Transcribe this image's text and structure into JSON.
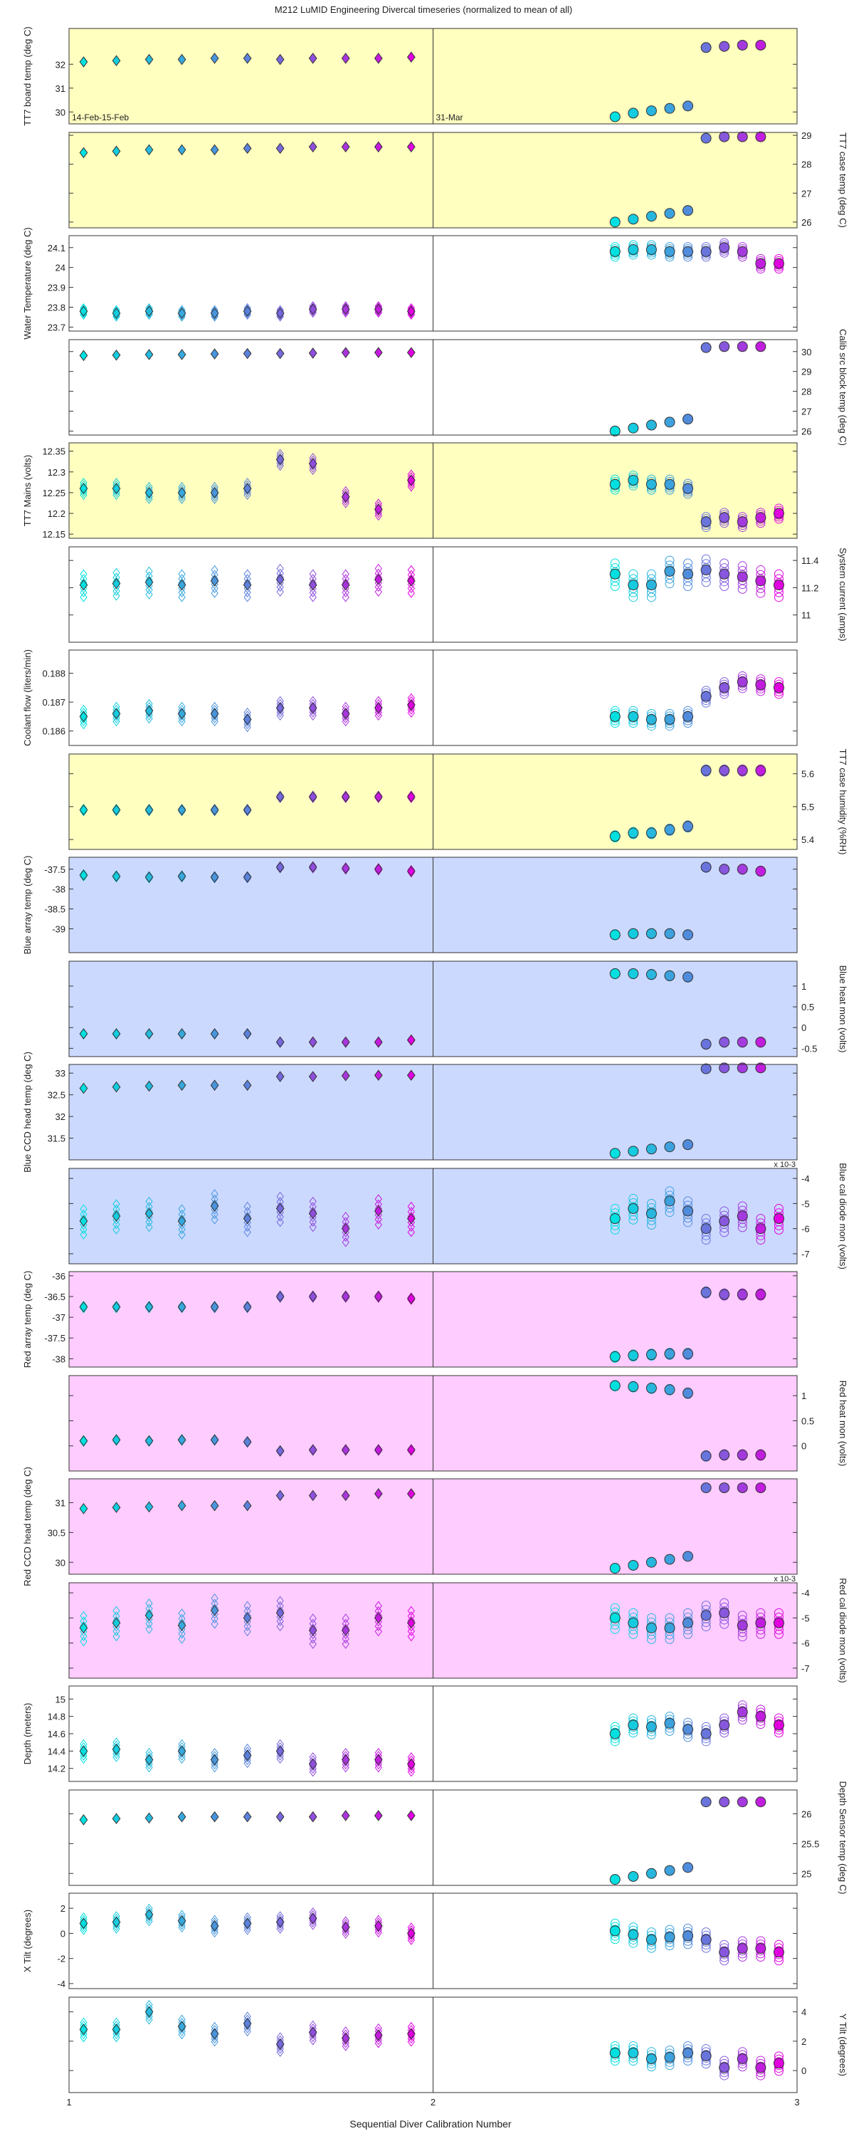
{
  "title": "M212  LuMID Engineering Divercal timeseries (normalized to mean of all)",
  "xlabel": "Sequential Diver Calibration Number",
  "x_ticks": [
    "1",
    "2",
    "3"
  ],
  "colors": {
    "bg_yellow": "#ffffc0",
    "bg_blue": "#ccd9ff",
    "bg_pink": "#ffccff",
    "bg_white": "#ffffff",
    "marker_start": "#00e0e0",
    "marker_end": "#e000e0"
  },
  "chart_data": {
    "type": "scatter",
    "x_range": [
      1,
      3
    ],
    "groups": [
      {
        "name": "14-Feb-15-Feb",
        "x": [
          1.04,
          1.13,
          1.22,
          1.31,
          1.4,
          1.49,
          1.58,
          1.67,
          1.76,
          1.85,
          1.94
        ],
        "marker": "diamond"
      },
      {
        "name": "31-Mar",
        "x": [
          2.5,
          2.55,
          2.6,
          2.65,
          2.7,
          2.75,
          2.8,
          2.85,
          2.9,
          2.95
        ],
        "marker": "circle"
      }
    ],
    "date_labels": [
      "14-Feb-15-Feb",
      "31-Mar"
    ],
    "panels": [
      {
        "label": "TT7 board temp (deg C)",
        "axis": "left",
        "bg": "yellow",
        "ylim": [
          29.5,
          33.5
        ],
        "ticks": [
          "30",
          "31",
          "32"
        ],
        "tick_values": [
          30,
          31,
          32
        ],
        "dates": true,
        "g1": [
          32.1,
          32.15,
          32.2,
          32.2,
          32.25,
          32.25,
          32.2,
          32.25,
          32.25,
          32.25,
          32.3
        ],
        "g1_spread": 0,
        "g2": [
          29.8,
          29.95,
          30.05,
          30.15,
          30.25,
          32.7,
          32.75,
          32.8,
          32.8,
          null
        ],
        "g2_spread": 0
      },
      {
        "label": "TT7 case temp (deg C)",
        "axis": "right",
        "bg": "yellow",
        "ylim": [
          25.8,
          29.1
        ],
        "ticks": [
          "26",
          "27",
          "28",
          "29"
        ],
        "tick_values": [
          26,
          27,
          28,
          29
        ],
        "g1": [
          28.4,
          28.45,
          28.5,
          28.5,
          28.5,
          28.55,
          28.55,
          28.6,
          28.6,
          28.6,
          28.6
        ],
        "g1_spread": 0,
        "g2": [
          26.0,
          26.1,
          26.2,
          26.3,
          26.4,
          28.9,
          28.95,
          28.95,
          28.95,
          null
        ],
        "g2_spread": 0
      },
      {
        "label": "Water Temperature (deg C)",
        "axis": "left",
        "bg": "white",
        "ylim": [
          23.68,
          24.16
        ],
        "ticks": [
          "23.7",
          "23.8",
          "23.9",
          "24",
          "24.1"
        ],
        "tick_values": [
          23.7,
          23.8,
          23.9,
          24.0,
          24.1
        ],
        "g1": [
          23.78,
          23.77,
          23.78,
          23.77,
          23.77,
          23.78,
          23.77,
          23.79,
          23.79,
          23.79,
          23.78
        ],
        "g1_spread": 0.04,
        "g2": [
          24.08,
          24.09,
          24.09,
          24.08,
          24.08,
          24.08,
          24.1,
          24.08,
          24.02,
          24.02
        ],
        "g2_spread": 0.06
      },
      {
        "label": "Calib src block temp (deg C)",
        "axis": "right",
        "bg": "white",
        "ylim": [
          25.8,
          30.6
        ],
        "ticks": [
          "26",
          "27",
          "28",
          "29",
          "30"
        ],
        "tick_values": [
          26,
          27,
          28,
          29,
          30
        ],
        "g1": [
          29.8,
          29.82,
          29.85,
          29.85,
          29.88,
          29.9,
          29.9,
          29.92,
          29.95,
          29.95,
          29.95
        ],
        "g1_spread": 0,
        "g2": [
          26.0,
          26.15,
          26.3,
          26.45,
          26.6,
          30.2,
          30.25,
          30.25,
          30.25,
          null
        ],
        "g2_spread": 0
      },
      {
        "label": "TT7 Mains (volts)",
        "axis": "left",
        "bg": "yellow",
        "ylim": [
          12.14,
          12.37
        ],
        "ticks": [
          "12.15",
          "12.2",
          "12.25",
          "12.3",
          "12.35"
        ],
        "tick_values": [
          12.15,
          12.2,
          12.25,
          12.3,
          12.35
        ],
        "g1": [
          12.26,
          12.26,
          12.25,
          12.25,
          12.25,
          12.26,
          12.33,
          12.32,
          12.24,
          12.21,
          12.28
        ],
        "g1_spread": 0.035,
        "g2": [
          12.27,
          12.28,
          12.27,
          12.27,
          12.26,
          12.18,
          12.19,
          12.18,
          12.19,
          12.2
        ],
        "g2_spread": 0.03
      },
      {
        "label": "System current (amps)",
        "axis": "right",
        "bg": "white",
        "ylim": [
          10.8,
          11.5
        ],
        "ticks": [
          "11",
          "11.2",
          "11.4"
        ],
        "tick_values": [
          11.0,
          11.2,
          11.4
        ],
        "g1": [
          11.22,
          11.23,
          11.24,
          11.22,
          11.25,
          11.22,
          11.26,
          11.22,
          11.22,
          11.26,
          11.25
        ],
        "g1_spread": 0.2,
        "g2": [
          11.3,
          11.22,
          11.22,
          11.32,
          11.3,
          11.33,
          11.3,
          11.28,
          11.25,
          11.22
        ],
        "g2_spread": 0.2
      },
      {
        "label": "Coolant flow (liters/min)",
        "axis": "left",
        "bg": "white",
        "ylim": [
          0.1855,
          0.1888
        ],
        "ticks": [
          "0.186",
          "0.187",
          "0.188"
        ],
        "tick_values": [
          0.186,
          0.187,
          0.188
        ],
        "g1": [
          0.1865,
          0.1866,
          0.1867,
          0.1866,
          0.1866,
          0.1864,
          0.1868,
          0.1868,
          0.1866,
          0.1868,
          0.1869
        ],
        "g1_spread": 0.0006,
        "g2": [
          0.1865,
          0.1865,
          0.1864,
          0.1864,
          0.1865,
          0.1872,
          0.1875,
          0.1877,
          0.1876,
          0.1875
        ],
        "g2_spread": 0.0005
      },
      {
        "label": "TT7 case humidity (%RH)",
        "axis": "right",
        "bg": "yellow",
        "ylim": [
          5.37,
          5.66
        ],
        "ticks": [
          "5.4",
          "5.5",
          "5.6"
        ],
        "tick_values": [
          5.4,
          5.5,
          5.6
        ],
        "g1": [
          5.49,
          5.49,
          5.49,
          5.49,
          5.49,
          5.49,
          5.53,
          5.53,
          5.53,
          5.53,
          5.53
        ],
        "g1_spread": 0.01,
        "g2": [
          5.41,
          5.42,
          5.42,
          5.43,
          5.44,
          5.61,
          5.61,
          5.61,
          5.61,
          null
        ],
        "g2_spread": 0.01
      },
      {
        "label": "Blue array temp (deg C)",
        "axis": "left",
        "bg": "blue",
        "ylim": [
          -39.6,
          -37.2
        ],
        "ticks": [
          "-39",
          "-38.5",
          "-38",
          "-37.5"
        ],
        "tick_values": [
          -39.0,
          -38.5,
          -38.0,
          -37.5
        ],
        "g1": [
          -37.65,
          -37.68,
          -37.7,
          -37.68,
          -37.7,
          -37.7,
          -37.45,
          -37.45,
          -37.48,
          -37.5,
          -37.55
        ],
        "g1_spread": 0.08,
        "g2": [
          -39.15,
          -39.12,
          -39.12,
          -39.12,
          -39.15,
          -37.45,
          -37.5,
          -37.5,
          -37.55,
          null
        ],
        "g2_spread": 0.05
      },
      {
        "label": "Blue heat mon (volts)",
        "axis": "right",
        "bg": "blue",
        "ylim": [
          -0.7,
          1.6
        ],
        "ticks": [
          "-0.5",
          "0",
          "0.5",
          "1"
        ],
        "tick_values": [
          -0.5,
          0.0,
          0.5,
          1.0
        ],
        "g1": [
          -0.15,
          -0.15,
          -0.15,
          -0.15,
          -0.15,
          -0.15,
          -0.35,
          -0.35,
          -0.35,
          -0.35,
          -0.3
        ],
        "g1_spread": 0.05,
        "g2": [
          1.3,
          1.3,
          1.28,
          1.25,
          1.22,
          -0.4,
          -0.35,
          -0.35,
          -0.35,
          null
        ],
        "g2_spread": 0.05
      },
      {
        "label": "Blue CCD head temp (deg C)",
        "axis": "left",
        "bg": "blue",
        "ylim": [
          31.0,
          33.2
        ],
        "ticks": [
          "31.5",
          "32",
          "32.5",
          "33"
        ],
        "tick_values": [
          31.5,
          32.0,
          32.5,
          33.0
        ],
        "g1": [
          32.65,
          32.68,
          32.7,
          32.72,
          32.72,
          32.72,
          32.92,
          32.92,
          32.94,
          32.95,
          32.95
        ],
        "g1_spread": 0,
        "g2": [
          31.15,
          31.2,
          31.25,
          31.3,
          31.35,
          33.1,
          33.12,
          33.12,
          33.12,
          null
        ],
        "g2_spread": 0
      },
      {
        "label": "Blue cal diode mon (volts)",
        "axis": "right",
        "bg": "blue",
        "ylim": [
          -7.4,
          -3.6
        ],
        "ticks": [
          "-7",
          "-6",
          "-5",
          "-4"
        ],
        "tick_values": [
          -7,
          -6,
          -5,
          -4
        ],
        "exp": "x 10-3",
        "g1": [
          -5.7,
          -5.5,
          -5.4,
          -5.7,
          -5.1,
          -5.6,
          -5.2,
          -5.4,
          -6.0,
          -5.3,
          -5.6
        ],
        "g1_spread": 1.2,
        "g2": [
          -5.6,
          -5.2,
          -5.4,
          -4.9,
          -5.3,
          -6.0,
          -5.7,
          -5.5,
          -6.0,
          -5.6
        ],
        "g2_spread": 1.0
      },
      {
        "label": "Red array temp (deg C)",
        "axis": "left",
        "bg": "pink",
        "ylim": [
          -38.2,
          -35.9
        ],
        "ticks": [
          "-38",
          "-37.5",
          "-37",
          "-36.5",
          "-36"
        ],
        "tick_values": [
          -38.0,
          -37.5,
          -37.0,
          -36.5,
          -36.0
        ],
        "g1": [
          -36.75,
          -36.75,
          -36.75,
          -36.75,
          -36.75,
          -36.75,
          -36.5,
          -36.5,
          -36.5,
          -36.5,
          -36.55
        ],
        "g1_spread": 0.08,
        "g2": [
          -37.95,
          -37.92,
          -37.9,
          -37.88,
          -37.88,
          -36.4,
          -36.45,
          -36.45,
          -36.45,
          null
        ],
        "g2_spread": 0.08
      },
      {
        "label": "Red heat mon (volts)",
        "axis": "right",
        "bg": "pink",
        "ylim": [
          -0.5,
          1.4
        ],
        "ticks": [
          "0",
          "0.5",
          "1"
        ],
        "tick_values": [
          0.0,
          0.5,
          1.0
        ],
        "g1": [
          0.1,
          0.12,
          0.1,
          0.12,
          0.12,
          0.08,
          -0.1,
          -0.08,
          -0.08,
          -0.08,
          -0.08
        ],
        "g1_spread": 0.05,
        "g2": [
          1.2,
          1.18,
          1.15,
          1.12,
          1.05,
          -0.2,
          -0.18,
          -0.18,
          -0.18,
          null
        ],
        "g2_spread": 0.05
      },
      {
        "label": "Red CCD head temp (deg C)",
        "axis": "left",
        "bg": "pink",
        "ylim": [
          29.8,
          31.4
        ],
        "ticks": [
          "30",
          "30.5",
          "31"
        ],
        "tick_values": [
          30.0,
          30.5,
          31.0
        ],
        "g1": [
          30.9,
          30.92,
          30.93,
          30.95,
          30.95,
          30.95,
          31.12,
          31.12,
          31.12,
          31.15,
          31.15
        ],
        "g1_spread": 0,
        "g2": [
          29.9,
          29.95,
          30.0,
          30.05,
          30.1,
          31.25,
          31.25,
          31.25,
          31.25,
          null
        ],
        "g2_spread": 0
      },
      {
        "label": "Red cal diode mon (volts)",
        "axis": "right",
        "bg": "pink",
        "ylim": [
          -7.4,
          -3.6
        ],
        "ticks": [
          "-7",
          "-6",
          "-5",
          "-4"
        ],
        "tick_values": [
          -7,
          -6,
          -5,
          -4
        ],
        "exp": "x 10-3",
        "g1": [
          -5.4,
          -5.2,
          -4.9,
          -5.3,
          -4.7,
          -5.0,
          -4.8,
          -5.5,
          -5.5,
          -5.0,
          -5.2
        ],
        "g1_spread": 1.2,
        "g2": [
          -5.0,
          -5.2,
          -5.4,
          -5.4,
          -5.2,
          -4.9,
          -4.8,
          -5.3,
          -5.2,
          -5.2
        ],
        "g2_spread": 1.0
      },
      {
        "label": "Depth (meters)",
        "axis": "left",
        "bg": "white",
        "ylim": [
          14.05,
          15.15
        ],
        "ticks": [
          "14.2",
          "14.4",
          "14.6",
          "14.8",
          "15"
        ],
        "tick_values": [
          14.2,
          14.4,
          14.6,
          14.8,
          15.0
        ],
        "g1": [
          14.4,
          14.42,
          14.3,
          14.4,
          14.3,
          14.35,
          14.4,
          14.25,
          14.3,
          14.3,
          14.25
        ],
        "g1_spread": 0.2,
        "g2": [
          14.6,
          14.7,
          14.68,
          14.72,
          14.65,
          14.6,
          14.7,
          14.85,
          14.8,
          14.7
        ],
        "g2_spread": 0.2
      },
      {
        "label": "Depth Sensor temp (deg C)",
        "axis": "right",
        "bg": "white",
        "ylim": [
          24.8,
          26.4
        ],
        "ticks": [
          "25",
          "25.5",
          "26"
        ],
        "tick_values": [
          25.0,
          25.5,
          26.0
        ],
        "g1": [
          25.9,
          25.92,
          25.93,
          25.95,
          25.95,
          25.95,
          25.95,
          25.95,
          25.97,
          25.97,
          25.97
        ],
        "g1_spread": 0,
        "g2": [
          24.9,
          24.95,
          25.0,
          25.05,
          25.1,
          26.2,
          26.2,
          26.2,
          26.2,
          null
        ],
        "g2_spread": 0
      },
      {
        "label": "X Tilt (degrees)",
        "axis": "left",
        "bg": "white",
        "ylim": [
          -4.4,
          3.2
        ],
        "ticks": [
          "-4",
          "-2",
          "0",
          "2"
        ],
        "tick_values": [
          -4,
          -2,
          0,
          2
        ],
        "g1": [
          0.8,
          0.9,
          1.5,
          1.0,
          0.6,
          0.8,
          0.9,
          1.2,
          0.5,
          0.6,
          0.0
        ],
        "g1_spread": 1.2,
        "g2": [
          0.2,
          -0.1,
          -0.5,
          -0.3,
          -0.2,
          -0.5,
          -1.5,
          -1.2,
          -1.2,
          -1.5
        ],
        "g2_spread": 1.5
      },
      {
        "label": "Y Tilt (degrees)",
        "axis": "right",
        "bg": "white",
        "ylim": [
          -1.5,
          5.0
        ],
        "ticks": [
          "0",
          "2",
          "4"
        ],
        "tick_values": [
          0,
          2,
          4
        ],
        "g1": [
          2.8,
          2.8,
          4.0,
          3.0,
          2.5,
          3.2,
          1.8,
          2.6,
          2.2,
          2.4,
          2.5
        ],
        "g1_spread": 1.2,
        "g2": [
          1.2,
          1.2,
          0.8,
          0.9,
          1.2,
          1.0,
          0.2,
          0.8,
          0.2,
          0.5
        ],
        "g2_spread": 1.2
      }
    ]
  }
}
